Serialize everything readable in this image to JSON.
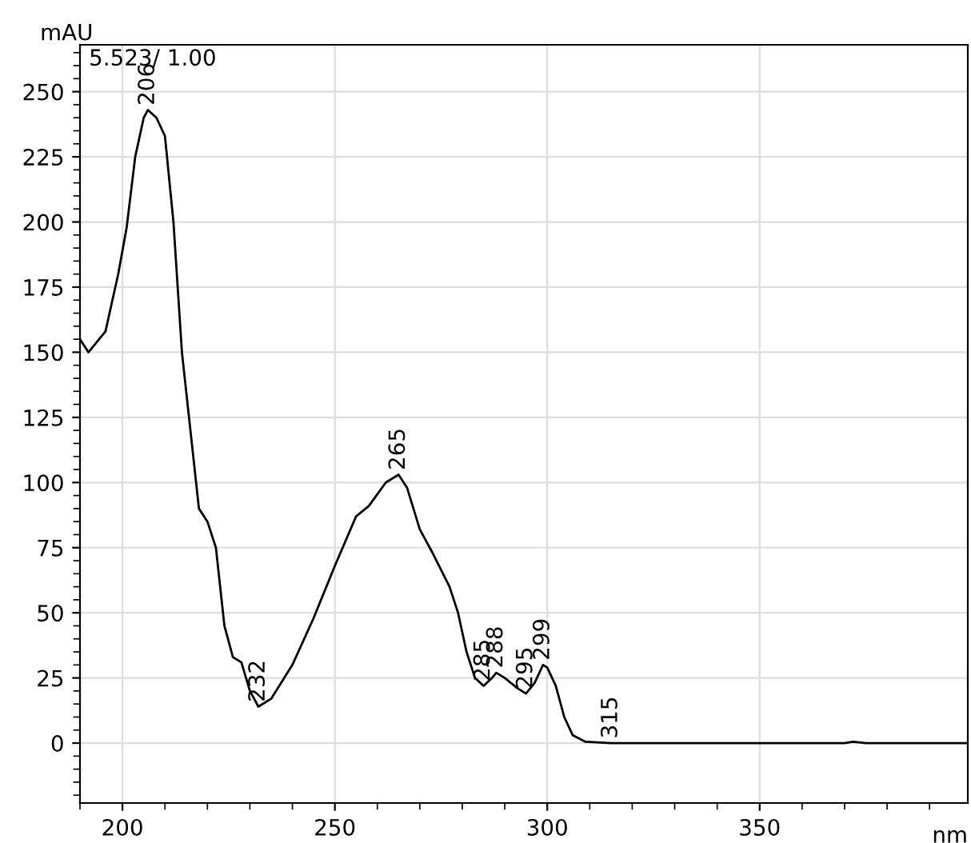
{
  "chart_data": {
    "type": "line",
    "xlabel": "nm",
    "ylabel": "mAU",
    "x": [
      190,
      192,
      196,
      199,
      201,
      203,
      205,
      206,
      208,
      210,
      212,
      214,
      216,
      218,
      220,
      222,
      224,
      226,
      228,
      230,
      232,
      235,
      240,
      245,
      250,
      255,
      258,
      262,
      265,
      267,
      270,
      273,
      277,
      279,
      281,
      283,
      285,
      287,
      288,
      290,
      293,
      295,
      297,
      299,
      300,
      302,
      304,
      306,
      309,
      315,
      330,
      370,
      372,
      375,
      399
    ],
    "series": [
      {
        "color": "#000000",
        "values": [
          155,
          150,
          158,
          180,
          198,
          225,
          240,
          243,
          240,
          233,
          200,
          150,
          120,
          90,
          85,
          75,
          45,
          33,
          31,
          20,
          14,
          17,
          30,
          48,
          68,
          87,
          91,
          100,
          103,
          98,
          82,
          73,
          60,
          50,
          35,
          25,
          22,
          25,
          27,
          25,
          21,
          19,
          23,
          30,
          29,
          22,
          10,
          3,
          0.5,
          0,
          0,
          0,
          0.5,
          0,
          0
        ]
      }
    ],
    "xlim": [
      190,
      399
    ],
    "ylim": [
      -23,
      268
    ],
    "xticks": [
      200,
      250,
      300,
      350
    ],
    "yticks": [
      0,
      25,
      50,
      75,
      100,
      125,
      150,
      175,
      200,
      225,
      250
    ],
    "grid": true,
    "marker": "none",
    "line_style": "solid",
    "annotations": [
      "5.523/ 1.00",
      {
        "text": "206",
        "x": 206,
        "y": 243
      },
      {
        "text": "232",
        "x": 232,
        "y": 14
      },
      {
        "text": "265",
        "x": 265,
        "y": 103
      },
      {
        "text": "285",
        "x": 285,
        "y": 22
      },
      {
        "text": "288",
        "x": 288,
        "y": 27
      },
      {
        "text": "295",
        "x": 295,
        "y": 19
      },
      {
        "text": "299",
        "x": 299,
        "y": 30
      },
      {
        "text": "315",
        "x": 315,
        "y": 0
      }
    ]
  }
}
